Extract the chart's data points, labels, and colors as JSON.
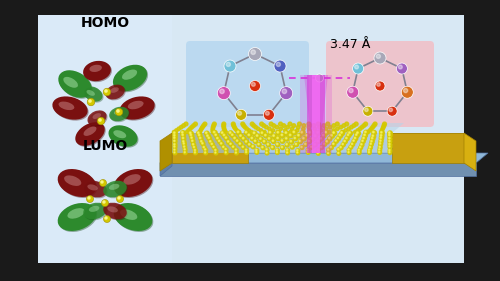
{
  "fig_width": 5.0,
  "fig_height": 2.81,
  "dpi": 100,
  "bg_color": "#1a1a1a",
  "panel_bg": "#d8e8f4",
  "panel_bg2": "#d8e8f4",
  "homo_label": "HOMO",
  "lumo_label": "LUMO",
  "distance_label": "3.47 Å",
  "green_lobe": "#2d8a2d",
  "red_lobe": "#7a1010",
  "yellow_atom": "#d4c800",
  "gold_color": "#d4a820",
  "substrate_top": "#8ab8d0",
  "substrate_bot": "#7090a8",
  "left_mol_bg": "#b8d8f0",
  "right_mol_bg": "#f0c0c8",
  "beam_color": "#d830d8",
  "mol_gray": "#a8a8b8",
  "mol_cyan": "#70c0d8",
  "mol_purple": "#a060c0",
  "mol_magenta": "#d050b0",
  "mol_yellow": "#c8b000",
  "mol_red": "#d83010",
  "mol_orange": "#d87020",
  "mol_blue": "#5060c0"
}
